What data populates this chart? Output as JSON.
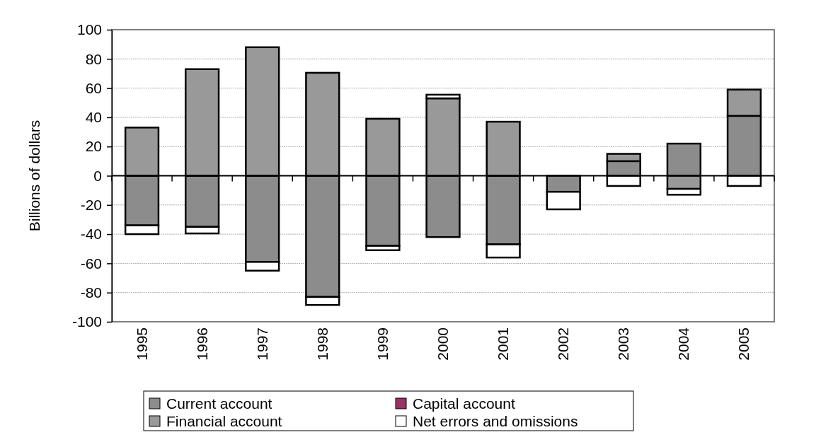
{
  "chart_data": {
    "type": "bar",
    "stacked": true,
    "ylabel": "Billions of dollars",
    "categories": [
      "1995",
      "1996",
      "1997",
      "1998",
      "1999",
      "2000",
      "2001",
      "2002",
      "2003",
      "2004",
      "2005"
    ],
    "series": [
      {
        "name": "Current account",
        "color": "#8c8c8c",
        "values": [
          -34,
          -35,
          -59,
          -83,
          -48,
          -42,
          -47,
          -11,
          10,
          22,
          41
        ]
      },
      {
        "name": "Capital account",
        "color": "#993366",
        "values": [
          0,
          0,
          0,
          0,
          0,
          0,
          0,
          0,
          0,
          0,
          0
        ]
      },
      {
        "name": "Financial account",
        "color": "#999999",
        "values": [
          33,
          73,
          88,
          70.5,
          39,
          53,
          37,
          0,
          5,
          -9,
          18
        ]
      },
      {
        "name": "Net errors and omissions",
        "color": "#ffffff",
        "values": [
          -6,
          -4.5,
          -6,
          -5.5,
          -3,
          2.5,
          -9,
          -12,
          -7,
          -4,
          -7
        ]
      }
    ],
    "ylim": [
      -100,
      100
    ],
    "yticks": [
      -100,
      -80,
      -60,
      -40,
      -20,
      0,
      20,
      40,
      60,
      80,
      100
    ],
    "grid": "y",
    "legend": "bottom"
  }
}
